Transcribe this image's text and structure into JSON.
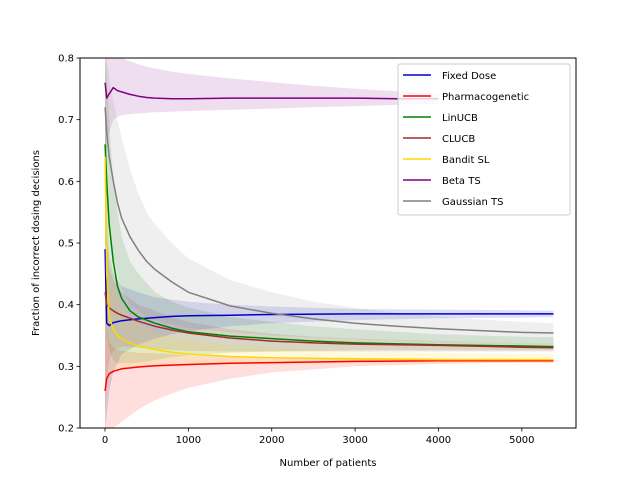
{
  "chart_data": {
    "type": "line",
    "title": "",
    "xlabel": "Number of patients",
    "ylabel": "Fraction of incorrect dosing decisions",
    "xlim": [
      -300,
      5650
    ],
    "ylim": [
      0.2,
      0.8
    ],
    "xticks": [
      0,
      1000,
      2000,
      3000,
      4000,
      5000
    ],
    "yticks": [
      0.2,
      0.3,
      0.4,
      0.5,
      0.6,
      0.7,
      0.8
    ],
    "xtick_labels": [
      "0",
      "1000",
      "2000",
      "3000",
      "4000",
      "5000"
    ],
    "ytick_labels": [
      "0.2",
      "0.3",
      "0.4",
      "0.5",
      "0.6",
      "0.7",
      "0.8"
    ],
    "grid": false,
    "legend_position": "top-right",
    "series": [
      {
        "name": "Fixed Dose",
        "color": "#0000cc",
        "x": [
          1,
          20,
          50,
          100,
          200,
          400,
          600,
          800,
          1000,
          1500,
          2000,
          3000,
          4000,
          5000,
          5380
        ],
        "y": [
          0.49,
          0.37,
          0.366,
          0.371,
          0.374,
          0.377,
          0.379,
          0.381,
          0.382,
          0.383,
          0.384,
          0.385,
          0.385,
          0.385,
          0.385
        ],
        "band_upper": [
          0.76,
          0.55,
          0.48,
          0.45,
          0.43,
          0.42,
          0.412,
          0.408,
          0.405,
          0.4,
          0.397,
          0.393,
          0.392,
          0.391,
          0.39
        ],
        "band_lower": [
          0.2,
          0.22,
          0.26,
          0.29,
          0.32,
          0.335,
          0.345,
          0.352,
          0.357,
          0.365,
          0.37,
          0.375,
          0.378,
          0.379,
          0.38
        ]
      },
      {
        "name": "Pharmacogenetic",
        "color": "#ff0000",
        "x": [
          1,
          20,
          50,
          100,
          200,
          400,
          600,
          800,
          1000,
          1500,
          2000,
          3000,
          4000,
          5000,
          5380
        ],
        "y": [
          0.26,
          0.28,
          0.288,
          0.292,
          0.296,
          0.299,
          0.301,
          0.302,
          0.303,
          0.305,
          0.306,
          0.308,
          0.309,
          0.309,
          0.309
        ],
        "band_upper": [
          0.4,
          0.36,
          0.34,
          0.33,
          0.325,
          0.322,
          0.321,
          0.32,
          0.318,
          0.316,
          0.315,
          0.314,
          0.313,
          0.312,
          0.312
        ],
        "band_lower": [
          0.2,
          0.2,
          0.2,
          0.2,
          0.21,
          0.23,
          0.245,
          0.256,
          0.265,
          0.28,
          0.29,
          0.3,
          0.304,
          0.306,
          0.306
        ]
      },
      {
        "name": "LinUCB",
        "color": "#008000",
        "x": [
          1,
          20,
          50,
          100,
          150,
          200,
          300,
          400,
          600,
          800,
          1000,
          1500,
          2000,
          2500,
          3000,
          4000,
          5000,
          5380
        ],
        "y": [
          0.66,
          0.6,
          0.53,
          0.47,
          0.43,
          0.41,
          0.39,
          0.38,
          0.37,
          0.362,
          0.356,
          0.349,
          0.345,
          0.341,
          0.338,
          0.335,
          0.333,
          0.332
        ],
        "band_upper": [
          0.8,
          0.78,
          0.7,
          0.6,
          0.55,
          0.51,
          0.47,
          0.45,
          0.42,
          0.405,
          0.395,
          0.38,
          0.372,
          0.365,
          0.36,
          0.352,
          0.348,
          0.347
        ],
        "band_lower": [
          0.4,
          0.35,
          0.33,
          0.31,
          0.305,
          0.305,
          0.305,
          0.306,
          0.31,
          0.315,
          0.318,
          0.322,
          0.324,
          0.325,
          0.326,
          0.326,
          0.326,
          0.326
        ]
      },
      {
        "name": "CLUCB",
        "color": "#a52a2a",
        "x": [
          1,
          20,
          50,
          100,
          150,
          200,
          300,
          400,
          600,
          800,
          1000,
          1500,
          2000,
          2500,
          3000,
          4000,
          5000,
          5380
        ],
        "y": [
          0.42,
          0.4,
          0.395,
          0.39,
          0.386,
          0.383,
          0.378,
          0.373,
          0.365,
          0.359,
          0.354,
          0.346,
          0.341,
          0.338,
          0.336,
          0.334,
          0.331,
          0.33
        ],
        "band_upper": [
          0.6,
          0.5,
          0.46,
          0.44,
          0.43,
          0.42,
          0.41,
          0.4,
          0.39,
          0.38,
          0.372,
          0.36,
          0.353,
          0.348,
          0.345,
          0.341,
          0.338,
          0.337
        ],
        "band_lower": [
          0.22,
          0.28,
          0.31,
          0.325,
          0.33,
          0.332,
          0.332,
          0.33,
          0.328,
          0.326,
          0.325,
          0.324,
          0.324,
          0.324,
          0.324,
          0.324,
          0.324,
          0.324
        ]
      },
      {
        "name": "Bandit SL",
        "color": "#ffd700",
        "x": [
          1,
          20,
          50,
          100,
          150,
          200,
          300,
          400,
          600,
          800,
          1000,
          1500,
          2000,
          2500,
          3000,
          4000,
          5000,
          5380
        ],
        "y": [
          0.64,
          0.45,
          0.38,
          0.36,
          0.35,
          0.345,
          0.338,
          0.333,
          0.327,
          0.323,
          0.32,
          0.316,
          0.314,
          0.313,
          0.312,
          0.311,
          0.311,
          0.311
        ],
        "band_upper": [
          0.8,
          0.6,
          0.5,
          0.45,
          0.42,
          0.4,
          0.38,
          0.37,
          0.355,
          0.348,
          0.342,
          0.334,
          0.33,
          0.327,
          0.325,
          0.322,
          0.32,
          0.32
        ],
        "band_lower": [
          0.2,
          0.26,
          0.28,
          0.29,
          0.293,
          0.295,
          0.297,
          0.298,
          0.299,
          0.3,
          0.301,
          0.302,
          0.303,
          0.304,
          0.304,
          0.305,
          0.305,
          0.305
        ]
      },
      {
        "name": "Beta TS",
        "color": "#800080",
        "x": [
          1,
          20,
          50,
          100,
          150,
          200,
          300,
          400,
          500,
          600,
          800,
          1000,
          1500,
          2000,
          2500,
          3000,
          3500,
          4000
        ],
        "y": [
          0.76,
          0.735,
          0.742,
          0.752,
          0.747,
          0.745,
          0.741,
          0.738,
          0.736,
          0.735,
          0.734,
          0.734,
          0.735,
          0.735,
          0.735,
          0.735,
          0.734,
          0.734
        ],
        "band_upper": [
          0.8,
          0.8,
          0.8,
          0.8,
          0.8,
          0.8,
          0.795,
          0.79,
          0.786,
          0.783,
          0.778,
          0.774,
          0.767,
          0.761,
          0.755,
          0.75,
          0.746,
          0.742
        ],
        "band_lower": [
          0.6,
          0.65,
          0.68,
          0.7,
          0.705,
          0.707,
          0.709,
          0.71,
          0.711,
          0.712,
          0.713,
          0.714,
          0.716,
          0.718,
          0.72,
          0.722,
          0.724,
          0.726
        ]
      },
      {
        "name": "Gaussian TS",
        "color": "#808080",
        "x": [
          1,
          20,
          50,
          100,
          150,
          200,
          300,
          400,
          500,
          600,
          800,
          1000,
          1500,
          2000,
          2500,
          3000,
          3500,
          4000,
          4500,
          5000,
          5380
        ],
        "y": [
          0.72,
          0.68,
          0.64,
          0.6,
          0.565,
          0.54,
          0.51,
          0.488,
          0.47,
          0.457,
          0.437,
          0.42,
          0.398,
          0.386,
          0.377,
          0.37,
          0.365,
          0.361,
          0.358,
          0.355,
          0.354
        ],
        "band_upper": [
          0.8,
          0.8,
          0.77,
          0.73,
          0.7,
          0.67,
          0.62,
          0.58,
          0.55,
          0.53,
          0.5,
          0.475,
          0.44,
          0.42,
          0.405,
          0.395,
          0.387,
          0.381,
          0.376,
          0.372,
          0.37
        ],
        "band_lower": [
          0.6,
          0.56,
          0.52,
          0.48,
          0.45,
          0.425,
          0.4,
          0.39,
          0.38,
          0.375,
          0.368,
          0.362,
          0.355,
          0.35,
          0.347,
          0.344,
          0.342,
          0.34,
          0.339,
          0.338,
          0.337
        ]
      }
    ]
  }
}
